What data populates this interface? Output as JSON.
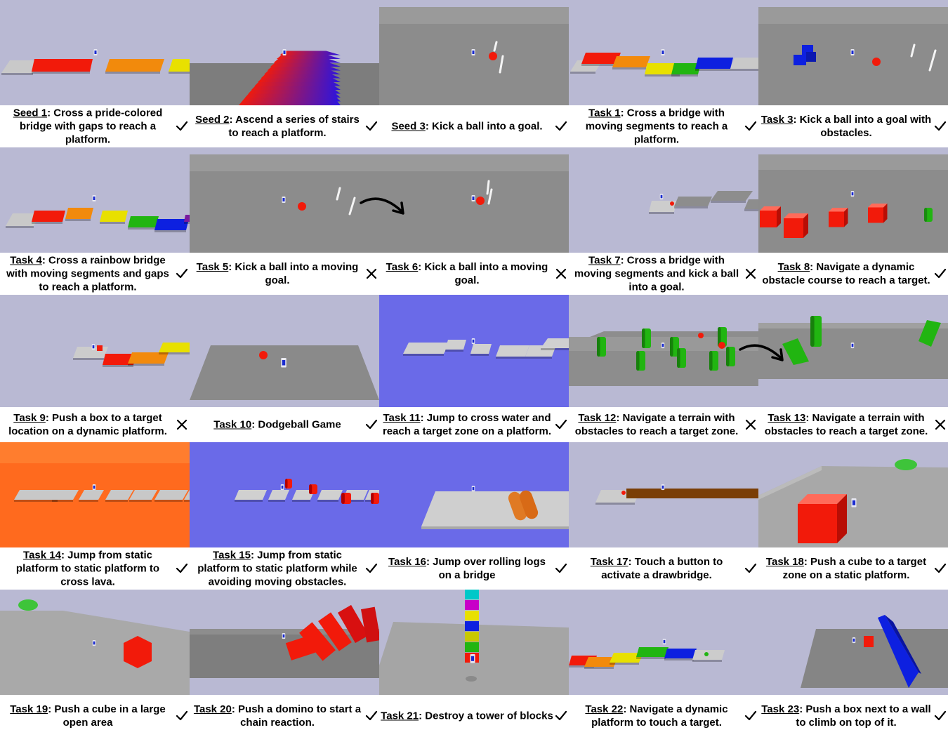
{
  "cells": [
    {
      "id": "Seed 1",
      "desc": ": Cross a pride-colored bridge with gaps to reach a platform.",
      "status": "check",
      "scene": "pride-bridge"
    },
    {
      "id": "Seed 2",
      "desc": ": Ascend a series of stairs to reach a platform.",
      "status": "check",
      "scene": "stairs"
    },
    {
      "id": "Seed 3",
      "desc": ": Kick a ball into a goal.",
      "status": "check",
      "scene": "kick-ball"
    },
    {
      "id": "Task 1",
      "desc": ": Cross a bridge with moving segments to reach a platform.",
      "status": "check",
      "scene": "moving-bridge"
    },
    {
      "id": "Task 3",
      "desc": ": Kick a ball into a goal with obstacles.",
      "status": "check",
      "scene": "kick-obstacles"
    },
    {
      "id": "Task 4",
      "desc": ": Cross a rainbow bridge with moving segments and gaps to reach a platform.",
      "status": "check",
      "scene": "rainbow-bridge"
    },
    {
      "id": "Task 5",
      "desc": ": Kick a ball into a moving goal.",
      "status": "cross",
      "scene": "moving-goal"
    },
    {
      "id": "Task 6",
      "desc": ": Kick a ball into a moving goal.",
      "status": "cross",
      "scene": "moving-goal-2"
    },
    {
      "id": "Task 7",
      "desc": ": Cross a bridge with moving segments and kick a ball into a goal.",
      "status": "cross",
      "scene": "bridge-kick"
    },
    {
      "id": "Task 8",
      "desc": ": Navigate a dynamic obstacle course to reach a target.",
      "status": "check",
      "scene": "obstacle-course"
    },
    {
      "id": "Task 9",
      "desc": ": Push a box to a target location on a dynamic platform.",
      "status": "cross",
      "scene": "push-box-dynamic"
    },
    {
      "id": "Task 10",
      "desc": ": Dodgeball Game",
      "status": "check",
      "scene": "dodgeball"
    },
    {
      "id": "Task 11",
      "desc": ": Jump to cross water and reach a target zone on a platform.",
      "status": "check",
      "scene": "water"
    },
    {
      "id": "Task 12",
      "desc": ": Navigate a terrain with obstacles to reach a target zone.",
      "status": "cross",
      "scene": "terrain"
    },
    {
      "id": "Task 13",
      "desc": ": Navigate a terrain with obstacles to reach a target zone.",
      "status": "cross",
      "scene": "terrain-2"
    },
    {
      "id": "Task 14",
      "desc": ": Jump from static platform to static platform to cross lava.",
      "status": "check",
      "scene": "lava"
    },
    {
      "id": "Task 15",
      "desc": ": Jump from static platform to static platform while avoiding moving obstacles.",
      "status": "check",
      "scene": "water-obstacles"
    },
    {
      "id": "Task 16",
      "desc": ": Jump over rolling logs on a bridge",
      "status": "check",
      "scene": "logs"
    },
    {
      "id": "Task 17",
      "desc": ": Touch a button to activate a drawbridge.",
      "status": "check",
      "scene": "drawbridge"
    },
    {
      "id": "Task 18",
      "desc": ": Push a cube to a target zone on a static platform.",
      "status": "check",
      "scene": "push-cube"
    },
    {
      "id": "Task 19",
      "desc": ": Push a cube in a large open area",
      "status": "check",
      "scene": "open-area"
    },
    {
      "id": "Task 20",
      "desc": ": Push a domino to start a chain reaction.",
      "status": "check",
      "scene": "domino"
    },
    {
      "id": "Task 21",
      "desc": ": Destroy a tower of blocks",
      "status": "check",
      "scene": "tower"
    },
    {
      "id": "Task 22",
      "desc": ": Navigate a dynamic platform to touch a target.",
      "status": "check",
      "scene": "dynamic-platform"
    },
    {
      "id": "Task 23",
      "desc": ": Push a box next to a wall to climb on top of it.",
      "status": "check",
      "scene": "wall-climb"
    }
  ],
  "arrows": [
    {
      "between": "Task 5 / Task 6",
      "icon": "curved-arrow-icon"
    },
    {
      "between": "Task 12 / Task 13",
      "icon": "curved-arrow-icon"
    }
  ],
  "colors": {
    "sky": "#b9b9d3",
    "floor": "#7d7d7d",
    "water": "#6169e6",
    "lava": "#ff6a1e",
    "red": "#f21a0a",
    "orange": "#f28a0c",
    "yellow": "#e8e000",
    "green": "#21b511",
    "blue": "#0d20e0"
  }
}
